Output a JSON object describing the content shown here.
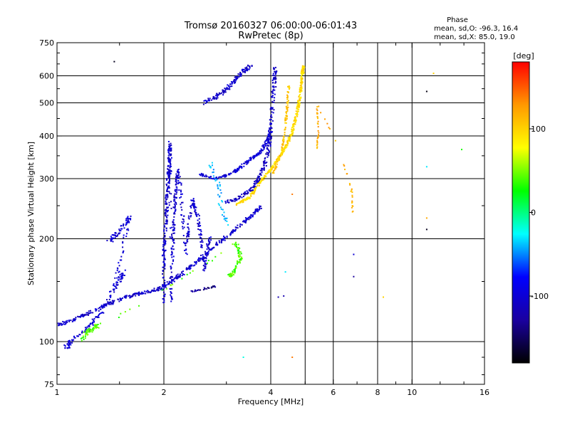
{
  "chart_data": {
    "type": "scatter",
    "title": "Tromsø 20160327 06:00:00-06:01:43",
    "subtitle": "RwPretec (8p)",
    "xlabel": "Frequency [MHz]",
    "ylabel": "Stationary phase Virtual Height [km]",
    "x_scale": "log",
    "y_scale": "log",
    "xlim": [
      1,
      16
    ],
    "ylim": [
      75,
      750
    ],
    "x_ticks": [
      1,
      2,
      4,
      6,
      8,
      10,
      16
    ],
    "y_ticks": [
      75,
      100,
      200,
      300,
      400,
      500,
      600,
      750
    ],
    "x_tick_labels": [
      "1",
      "2",
      "4",
      "6",
      "8",
      "10",
      "16"
    ],
    "y_tick_labels": [
      "75",
      "100",
      "200",
      "300",
      "400",
      "500",
      "600",
      "750"
    ],
    "x_minor_ticks": [
      1.5,
      3,
      5,
      7,
      9,
      12,
      14
    ],
    "y_minor_ticks": [
      80,
      90,
      150,
      250,
      350,
      450,
      550,
      650,
      700
    ],
    "grid_x": [
      2,
      4,
      5,
      6,
      8,
      10
    ],
    "grid_y": [
      100,
      200,
      300,
      400,
      500,
      600
    ],
    "grid": true,
    "stats": {
      "heading": "Phase",
      "o_line": "mean, sd,O: -96.3, 16.4",
      "x_line": "mean, sd,X:  85.0, 19.0"
    },
    "colorbar": {
      "label": "[deg]",
      "range": [
        -180,
        180
      ],
      "ticks": [
        100,
        0,
        -100
      ],
      "tick_labels": [
        "100",
        "0",
        "-100"
      ],
      "colors": [
        "#ff0000",
        "#ff9900",
        "#ffff00",
        "#00ff00",
        "#00ffff",
        "#0000ff",
        "#1a00a0",
        "#000000"
      ]
    },
    "series": [
      {
        "phase": -105,
        "spread_x": 0.012,
        "spread_y": 0.01,
        "density": 2,
        "points": [
          [
            1,
            112
          ],
          [
            1.1,
            115
          ],
          [
            1.2,
            120
          ],
          [
            1.35,
            127
          ],
          [
            1.5,
            133
          ],
          [
            1.65,
            137
          ],
          [
            1.8,
            140
          ],
          [
            1.95,
            143
          ],
          [
            2.1,
            150
          ],
          [
            2.25,
            158
          ],
          [
            2.45,
            170
          ],
          [
            2.7,
            185
          ],
          [
            2.95,
            200
          ],
          [
            3.2,
            215
          ],
          [
            3.5,
            232
          ],
          [
            3.75,
            248
          ]
        ]
      },
      {
        "phase": -110,
        "spread_x": 0.012,
        "spread_y": 0.01,
        "density": 2,
        "points": [
          [
            3.0,
            255
          ],
          [
            3.3,
            266
          ],
          [
            3.55,
            280
          ],
          [
            3.7,
            300
          ],
          [
            3.85,
            330
          ],
          [
            3.95,
            370
          ],
          [
            4.0,
            420
          ],
          [
            4.05,
            500
          ],
          [
            4.1,
            580
          ],
          [
            4.12,
            640
          ]
        ]
      },
      {
        "phase": -100,
        "spread_x": 0.01,
        "spread_y": 0.008,
        "density": 2,
        "points": [
          [
            2.5,
            310
          ],
          [
            2.8,
            300
          ],
          [
            3.1,
            310
          ],
          [
            3.3,
            325
          ],
          [
            3.55,
            345
          ],
          [
            3.75,
            360
          ],
          [
            3.9,
            385
          ],
          [
            4.0,
            410
          ]
        ]
      },
      {
        "phase": -105,
        "spread_x": 0.015,
        "spread_y": 0.012,
        "density": 2,
        "points": [
          [
            2.6,
            500
          ],
          [
            2.8,
            520
          ],
          [
            3.0,
            545
          ],
          [
            3.15,
            580
          ],
          [
            3.35,
            620
          ],
          [
            3.5,
            640
          ]
        ]
      },
      {
        "phase": -105,
        "spread_x": 0.01,
        "spread_y": 0.02,
        "density": 3,
        "points": [
          [
            2.0,
            130
          ],
          [
            2.0,
            180
          ],
          [
            2.03,
            230
          ],
          [
            2.05,
            280
          ],
          [
            2.07,
            330
          ],
          [
            2.08,
            380
          ],
          [
            2.1,
            130
          ],
          [
            2.12,
            200
          ],
          [
            2.15,
            260
          ],
          [
            2.2,
            320
          ],
          [
            2.3,
            180
          ],
          [
            2.4,
            260
          ],
          [
            2.5,
            230
          ],
          [
            2.6,
            160
          ],
          [
            2.7,
            205
          ]
        ]
      },
      {
        "phase": -100,
        "spread_x": 0.015,
        "spread_y": 0.015,
        "density": 2,
        "points": [
          [
            1.4,
            195
          ],
          [
            1.5,
            210
          ],
          [
            1.6,
            230
          ],
          [
            1.45,
            145
          ],
          [
            1.55,
            160
          ],
          [
            1.35,
            125
          ],
          [
            1.25,
            112
          ],
          [
            1.1,
            100
          ],
          [
            1.05,
            95
          ]
        ]
      },
      {
        "phase": -135,
        "spread_x": 0.01,
        "spread_y": 0.005,
        "density": 1,
        "points": [
          [
            2.4,
            140
          ],
          [
            2.6,
            143
          ],
          [
            2.8,
            145
          ]
        ]
      },
      {
        "phase": 95,
        "spread_x": 0.008,
        "spread_y": 0.006,
        "density": 3,
        "points": [
          [
            3.2,
            252
          ],
          [
            3.5,
            265
          ],
          [
            3.8,
            300
          ],
          [
            4.1,
            330
          ],
          [
            4.4,
            370
          ],
          [
            4.6,
            410
          ],
          [
            4.75,
            470
          ],
          [
            4.85,
            530
          ],
          [
            4.9,
            600
          ],
          [
            4.95,
            640
          ]
        ]
      },
      {
        "phase": 105,
        "spread_x": 0.006,
        "spread_y": 0.01,
        "density": 2,
        "points": [
          [
            4.05,
            310
          ],
          [
            4.3,
            360
          ],
          [
            4.4,
            420
          ],
          [
            4.45,
            490
          ],
          [
            4.5,
            560
          ]
        ]
      },
      {
        "phase": 40,
        "spread_x": 0.012,
        "spread_y": 0.01,
        "density": 2,
        "points": [
          [
            3.05,
            155
          ],
          [
            3.15,
            160
          ],
          [
            3.3,
            175
          ],
          [
            3.2,
            195
          ],
          [
            1.2,
            106
          ],
          [
            1.3,
            112
          ],
          [
            1.15,
            100
          ]
        ]
      },
      {
        "phase": 120,
        "spread_x": 0.004,
        "spread_y": 0.012,
        "density": 1,
        "points": [
          [
            5.4,
            360
          ],
          [
            5.45,
            420
          ],
          [
            5.4,
            490
          ],
          [
            6.75,
            280
          ],
          [
            6.8,
            240
          ]
        ]
      },
      {
        "phase": -40,
        "spread_x": 0.015,
        "spread_y": 0.015,
        "density": 1,
        "points": [
          [
            2.7,
            330
          ],
          [
            2.85,
            290
          ],
          [
            2.9,
            250
          ],
          [
            3.0,
            220
          ]
        ]
      }
    ],
    "isolated_points": [
      {
        "x": 1.45,
        "y": 660,
        "phase": -170
      },
      {
        "x": 4.6,
        "y": 270,
        "phase": 140
      },
      {
        "x": 4.4,
        "y": 160,
        "phase": -30
      },
      {
        "x": 4.6,
        "y": 90,
        "phase": 140
      },
      {
        "x": 3.35,
        "y": 90,
        "phase": -20
      },
      {
        "x": 6.85,
        "y": 180,
        "phase": -100
      },
      {
        "x": 6.85,
        "y": 155,
        "phase": -130
      },
      {
        "x": 8.3,
        "y": 135,
        "phase": 100
      },
      {
        "x": 11.0,
        "y": 540,
        "phase": -175
      },
      {
        "x": 11.0,
        "y": 325,
        "phase": -30
      },
      {
        "x": 11.0,
        "y": 230,
        "phase": 120
      },
      {
        "x": 11.0,
        "y": 213,
        "phase": -170
      },
      {
        "x": 11.5,
        "y": 610,
        "phase": 100
      },
      {
        "x": 13.8,
        "y": 365,
        "phase": 30
      },
      {
        "x": 4.2,
        "y": 135,
        "phase": -120
      },
      {
        "x": 4.35,
        "y": 136,
        "phase": -120
      }
    ]
  }
}
